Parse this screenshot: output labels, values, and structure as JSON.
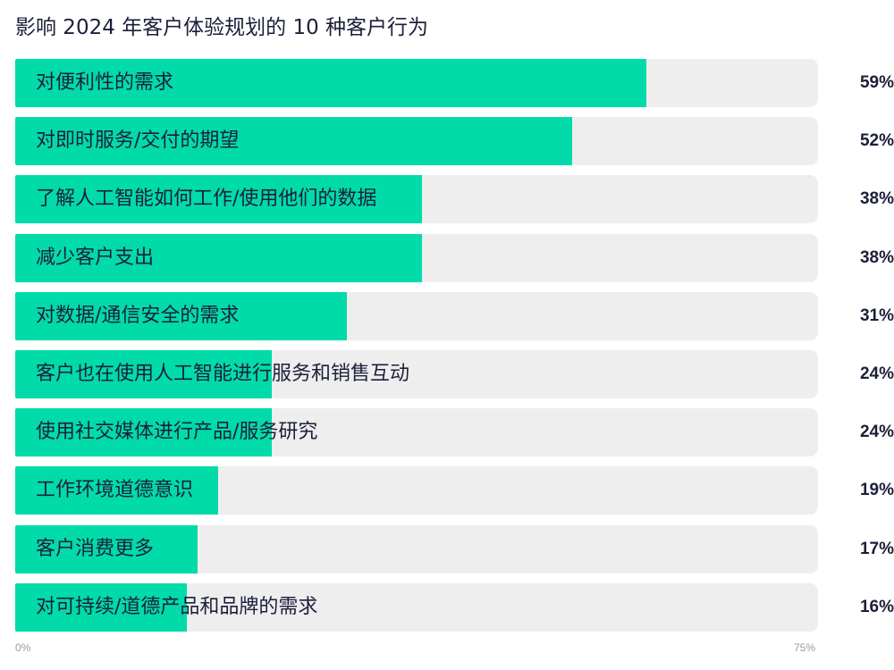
{
  "chart_data": {
    "type": "bar",
    "orientation": "horizontal",
    "title": "影响 2024 年客户体验规划的 10 种客户行为",
    "categories": [
      "对便利性的需求",
      "对即时服务/交付的期望",
      "了解人工智能如何工作/使用他们的数据",
      "减少客户支出",
      "对数据/通信安全的需求",
      "客户也在使用人工智能进行服务和销售互动",
      "使用社交媒体进行产品/服务研究",
      "工作环境道德意识",
      "客户消费更多",
      "对可持续/道德产品和品牌的需求"
    ],
    "values": [
      59,
      52,
      38,
      38,
      31,
      24,
      24,
      19,
      17,
      16
    ],
    "value_labels": [
      "59%",
      "52%",
      "38%",
      "38%",
      "31%",
      "24%",
      "24%",
      "19%",
      "17%",
      "16%"
    ],
    "xlim": [
      0,
      75
    ],
    "tick_labels": [
      "0%",
      "75%"
    ],
    "colors": {
      "bar": "#00dba9",
      "track": "#eeeeee",
      "text": "#1c1f3a",
      "axis_text": "#9a9aa6"
    }
  }
}
